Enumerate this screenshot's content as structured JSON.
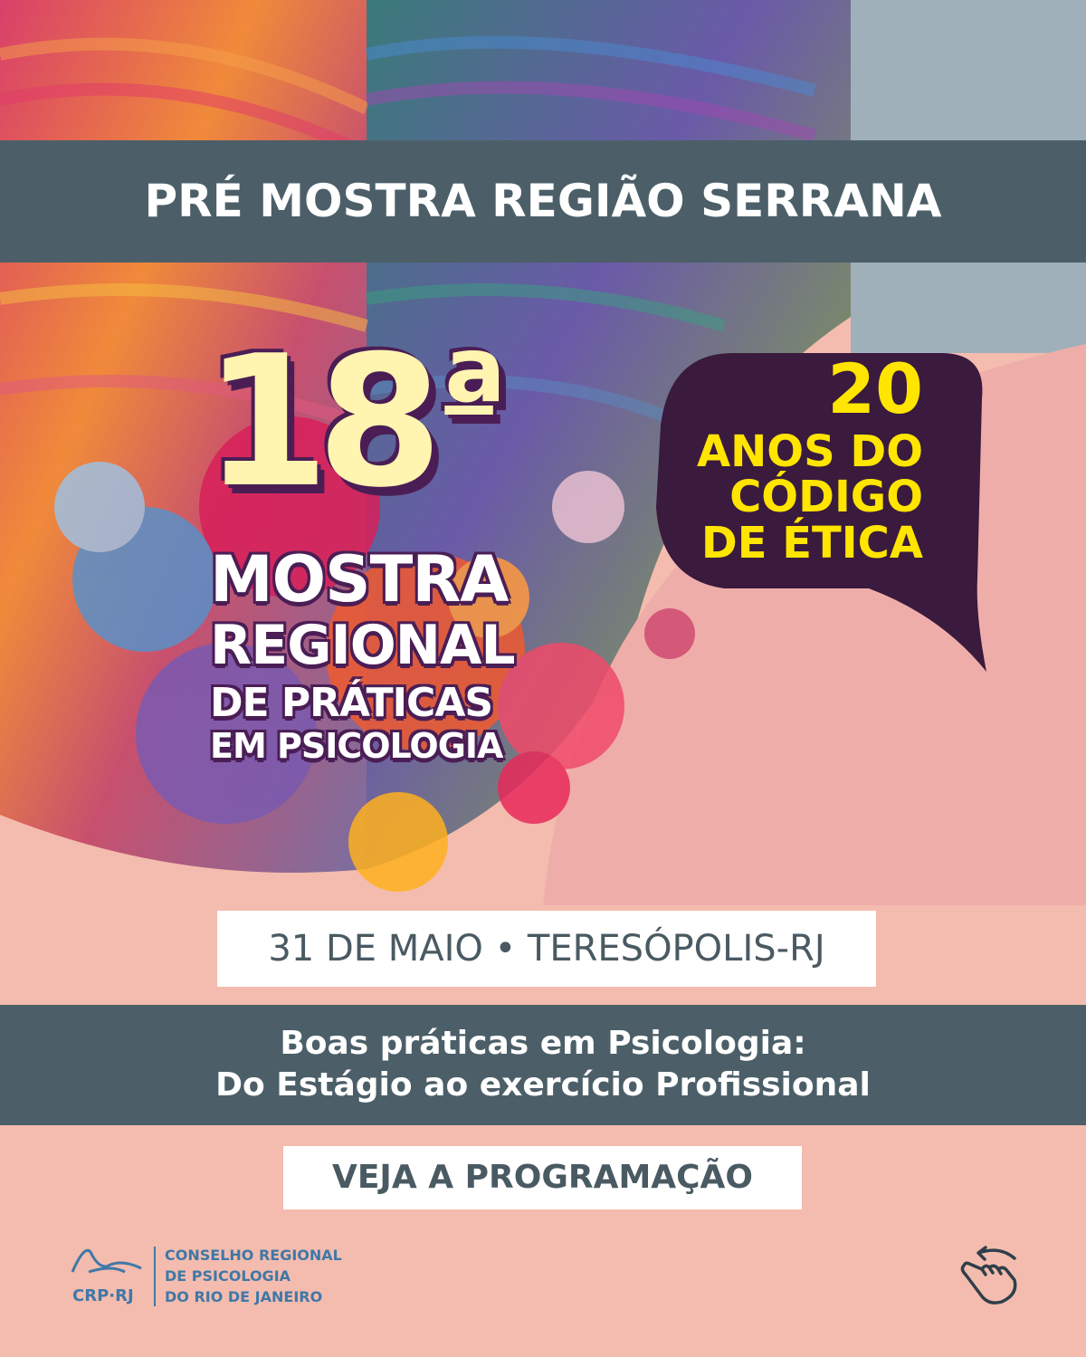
{
  "top_banner": {
    "title": "PRÉ MOSTRA REGIÃO SERRANA"
  },
  "edition": {
    "number": "18",
    "ordinal": "a"
  },
  "event": {
    "line1": "MOSTRA",
    "line2": "REGIONAL",
    "line3": "DE PRÁTICAS",
    "line4": "EM PSICOLOGIA"
  },
  "bubble": {
    "number": "20",
    "line1": "ANOS DO",
    "line2": "CÓDIGO",
    "line3": "DE ÉTICA"
  },
  "date_location": "31 DE MAIO • TERESÓPOLIS-RJ",
  "theme": {
    "line1": "Boas práticas em Psicologia:",
    "line2": "Do Estágio ao exercício Profissional"
  },
  "cta": {
    "label": "VEJA A PROGRAMAÇÃO"
  },
  "logo": {
    "acronym": "CRP·RJ",
    "line1": "CONSELHO REGIONAL",
    "line2": "DE PSICOLOGIA",
    "line3": "DO RIO DE JANEIRO"
  },
  "icons": {
    "swipe": "swipe-left-hand-icon"
  },
  "colors": {
    "banner": "#4c5f68",
    "bubble": "#3a1a3d",
    "yellow": "#ffe500",
    "logo": "#3f78a8",
    "pink": "#f4bcae"
  }
}
